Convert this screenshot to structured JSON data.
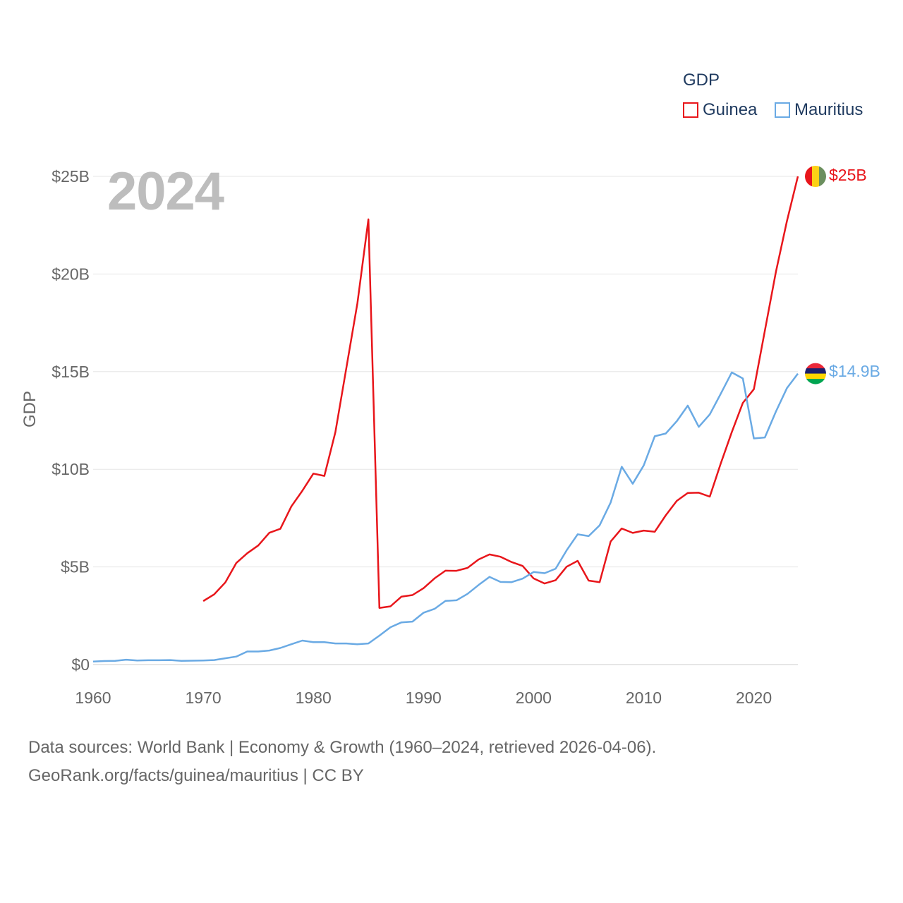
{
  "legend": {
    "title": "GDP",
    "items": [
      {
        "name": "Guinea",
        "color": "#e8161b"
      },
      {
        "name": "Mauritius",
        "color": "#6aaae4"
      }
    ]
  },
  "year_label": "2024",
  "end_labels": {
    "guinea": "$25B",
    "mauritius": "$14.9B"
  },
  "flags": {
    "guinea": {
      "icon": "guinea-flag-icon",
      "colors": [
        "#e8161b",
        "#fcd116",
        "#6b8f5e"
      ]
    },
    "mauritius": {
      "icon": "mauritius-flag-icon",
      "colors": [
        "#ea2839",
        "#1a206d",
        "#ffd500",
        "#00a551"
      ]
    }
  },
  "source": {
    "line1": "Data sources: World Bank | Economy & Growth (1960–2024, retrieved 2026-04-06).",
    "line2": "GeoRank.org/facts/guinea/mauritius | CC BY"
  },
  "chart_data": {
    "type": "line",
    "title": "GDP",
    "xlabel": "",
    "ylabel": "GDP",
    "xlim": [
      1960,
      2024
    ],
    "ylim": [
      0,
      25
    ],
    "x_ticks": [
      1960,
      1970,
      1980,
      1990,
      2000,
      2010,
      2020
    ],
    "x_tick_labels": [
      "1960",
      "1970",
      "1980",
      "1990",
      "2000",
      "2010",
      "2020"
    ],
    "y_ticks": [
      0,
      5,
      10,
      15,
      20,
      25
    ],
    "y_tick_labels": [
      "$0",
      "$5B",
      "$10B",
      "$15B",
      "$20B",
      "$25B"
    ],
    "grid": true,
    "legend_position": "top-right",
    "units": "USD billions",
    "series": [
      {
        "name": "Guinea",
        "color": "#e8161b",
        "x": [
          1970,
          1971,
          1972,
          1973,
          1974,
          1975,
          1976,
          1977,
          1978,
          1979,
          1980,
          1981,
          1982,
          1983,
          1984,
          1985,
          1986,
          1987,
          1988,
          1989,
          1990,
          1991,
          1992,
          1993,
          1994,
          1995,
          1996,
          1997,
          1998,
          1999,
          2000,
          2001,
          2002,
          2003,
          2004,
          2005,
          2006,
          2007,
          2008,
          2009,
          2010,
          2011,
          2012,
          2013,
          2014,
          2015,
          2016,
          2017,
          2018,
          2019,
          2020,
          2021,
          2022,
          2023,
          2024
        ],
        "values": [
          3.25,
          3.6,
          4.2,
          5.2,
          5.7,
          6.1,
          6.75,
          6.95,
          8.1,
          8.9,
          9.78,
          9.66,
          11.9,
          15.2,
          18.5,
          22.8,
          2.9,
          2.98,
          3.48,
          3.56,
          3.91,
          4.41,
          4.81,
          4.8,
          4.95,
          5.38,
          5.64,
          5.52,
          5.25,
          5.05,
          4.41,
          4.15,
          4.32,
          5.01,
          5.31,
          4.3,
          4.22,
          6.3,
          6.97,
          6.74,
          6.86,
          6.8,
          7.64,
          8.38,
          8.79,
          8.8,
          8.6,
          10.3,
          11.9,
          13.4,
          14.1,
          17.1,
          20.1,
          22.7,
          25.0
        ]
      },
      {
        "name": "Mauritius",
        "color": "#6aaae4",
        "x": [
          1960,
          1961,
          1962,
          1963,
          1964,
          1965,
          1966,
          1967,
          1968,
          1969,
          1970,
          1971,
          1972,
          1973,
          1974,
          1975,
          1976,
          1977,
          1978,
          1979,
          1980,
          1981,
          1982,
          1983,
          1984,
          1985,
          1986,
          1987,
          1988,
          1989,
          1990,
          1991,
          1992,
          1993,
          1994,
          1995,
          1996,
          1997,
          1998,
          1999,
          2000,
          2001,
          2002,
          2003,
          2004,
          2005,
          2006,
          2007,
          2008,
          2009,
          2010,
          2011,
          2012,
          2013,
          2014,
          2015,
          2016,
          2017,
          2018,
          2019,
          2020,
          2021,
          2022,
          2023,
          2024
        ],
        "values": [
          0.15,
          0.18,
          0.19,
          0.25,
          0.21,
          0.22,
          0.22,
          0.23,
          0.19,
          0.2,
          0.21,
          0.23,
          0.32,
          0.41,
          0.67,
          0.67,
          0.72,
          0.85,
          1.04,
          1.23,
          1.15,
          1.15,
          1.08,
          1.08,
          1.04,
          1.08,
          1.48,
          1.91,
          2.16,
          2.2,
          2.65,
          2.85,
          3.26,
          3.29,
          3.62,
          4.07,
          4.49,
          4.23,
          4.22,
          4.4,
          4.74,
          4.68,
          4.91,
          5.85,
          6.67,
          6.58,
          7.13,
          8.3,
          10.13,
          9.26,
          10.2,
          11.69,
          11.83,
          12.46,
          13.26,
          12.17,
          12.81,
          13.87,
          14.96,
          14.65,
          11.58,
          11.63,
          12.95,
          14.15,
          14.9
        ]
      }
    ]
  }
}
